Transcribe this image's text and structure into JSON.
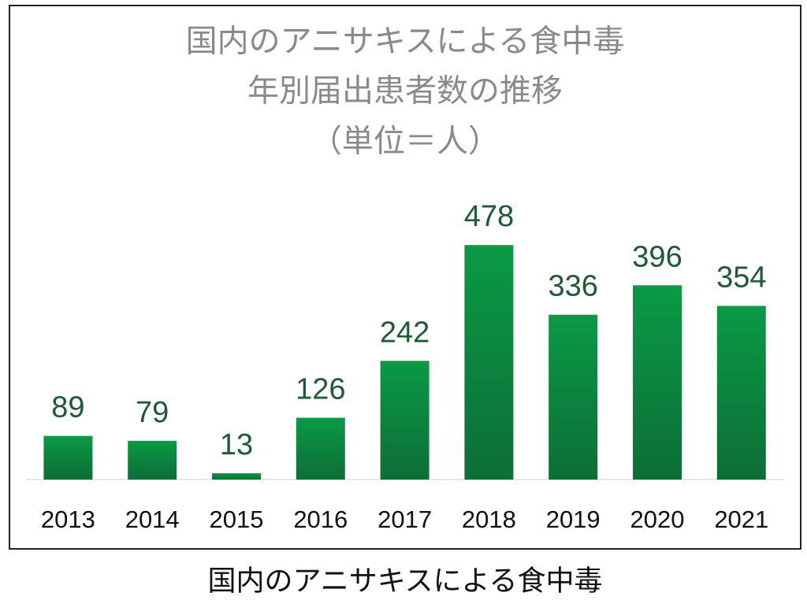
{
  "chart_data": {
    "type": "bar",
    "title": [
      "国内のアニサキスによる食中毒",
      "年別届出患者数の推移",
      "（単位＝人）"
    ],
    "categories": [
      "2013",
      "2014",
      "2015",
      "2016",
      "2017",
      "2018",
      "2019",
      "2020",
      "2021"
    ],
    "values": [
      89,
      79,
      13,
      126,
      242,
      478,
      336,
      396,
      354
    ],
    "color": "#0a9a45",
    "caption": "国内のアニサキスによる食中毒"
  }
}
